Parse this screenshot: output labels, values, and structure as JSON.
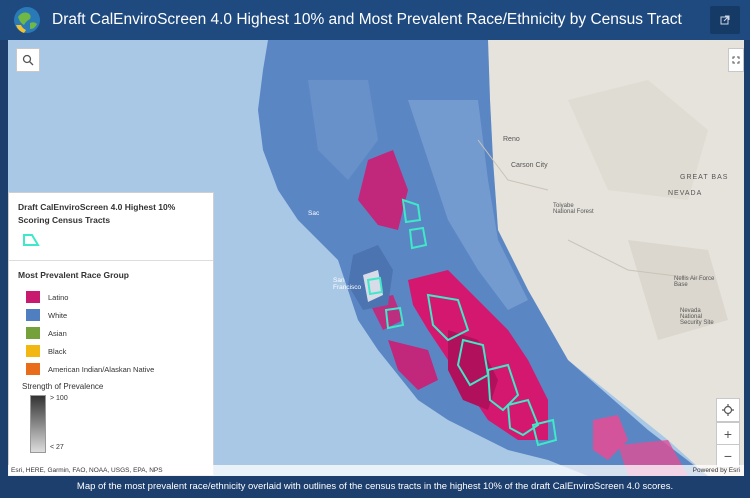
{
  "header": {
    "title": "Draft CalEnviroScreen 4.0 Highest 10% and Most Prevalent Race/Ethnicity by Census Tract",
    "logo_icon": "globe-phone-icon",
    "share_icon": "external-link-icon"
  },
  "map": {
    "search_icon": "search-icon",
    "locate_icon": "locate-icon",
    "zoom_in_label": "+",
    "zoom_out_label": "−",
    "expand_icon": "expand-icon",
    "place_labels": [
      "Reno",
      "Carson City",
      "GREAT BAS",
      "NEVADA",
      "Nellis Air Force Base",
      "Nevada National Security Site",
      "Toiyabe National Forest",
      "San Francisco",
      "Sac"
    ],
    "colors": {
      "ocean": "#a8c8e6",
      "land": "#e4e2dc",
      "white": "#5b86c4",
      "latino": "#d4186f",
      "outline": "#3ee8c8"
    }
  },
  "legend": {
    "layer1_title": "Draft CalEnviroScreen 4.0 Highest 10% Scoring Census Tracts",
    "layer2_title": "Most Prevalent Race Group",
    "groups": [
      {
        "label": "Latino",
        "color": "#c81a6e"
      },
      {
        "label": "White",
        "color": "#4f7fc0"
      },
      {
        "label": "Asian",
        "color": "#74a13a"
      },
      {
        "label": "Black",
        "color": "#f3b711"
      },
      {
        "label": "American Indian/Alaskan Native",
        "color": "#e86c1a"
      }
    ],
    "strength_title": "Strength of Prevalence",
    "strength_high": "> 100",
    "strength_low": "< 27"
  },
  "attribution": {
    "sources": "Esri, HERE, Garmin, FAO, NOAA, USGS, EPA, NPS",
    "powered": "Powered by Esri"
  },
  "caption": "Map of the most prevalent race/ethnicity overlaid with outlines of the census tracts in the highest 10% of the draft CalEnviroScreen 4.0 scores."
}
